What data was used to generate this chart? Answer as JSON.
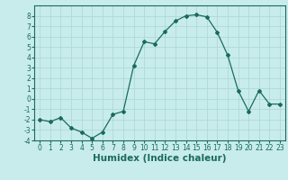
{
  "x": [
    0,
    1,
    2,
    3,
    4,
    5,
    6,
    7,
    8,
    9,
    10,
    11,
    12,
    13,
    14,
    15,
    16,
    17,
    18,
    19,
    20,
    21,
    22,
    23
  ],
  "y": [
    -2,
    -2.2,
    -1.8,
    -2.8,
    -3.2,
    -3.8,
    -3.2,
    -1.5,
    -1.2,
    3.2,
    5.5,
    5.3,
    6.5,
    7.5,
    8.0,
    8.1,
    7.9,
    6.4,
    4.2,
    0.8,
    -1.2,
    0.8,
    -0.5,
    -0.5
  ],
  "xlabel": "Humidex (Indice chaleur)",
  "bg_color": "#c8ecec",
  "line_color": "#1a6b5a",
  "grid_color": "#b0d8d8",
  "ylim": [
    -4,
    9
  ],
  "xlim": [
    -0.5,
    23.5
  ],
  "yticks": [
    -4,
    -3,
    -2,
    -1,
    0,
    1,
    2,
    3,
    4,
    5,
    6,
    7,
    8
  ],
  "xticks": [
    0,
    1,
    2,
    3,
    4,
    5,
    6,
    7,
    8,
    9,
    10,
    11,
    12,
    13,
    14,
    15,
    16,
    17,
    18,
    19,
    20,
    21,
    22,
    23
  ],
  "tick_fontsize": 5.5,
  "xlabel_fontsize": 7.5
}
